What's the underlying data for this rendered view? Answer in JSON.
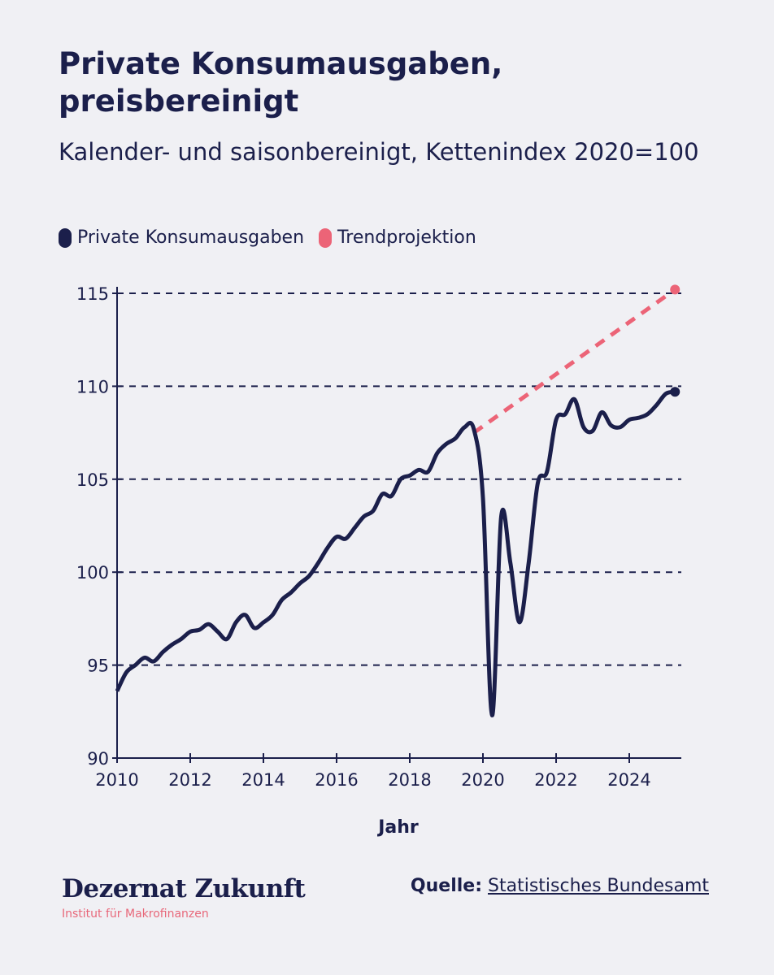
{
  "colors": {
    "series": "#1b1f4b",
    "trend": "#ec6477",
    "background": "#f0f0f4"
  },
  "footer": {
    "brand": "Dezernat Zukunft",
    "brand_sub": "Institut für Makrofinanzen",
    "source_label": "Quelle:",
    "source_link": "Statistisches Bundesamt"
  },
  "chart_data": {
    "type": "line",
    "title": "Private Konsumausgaben, preisbereinigt",
    "subtitle": "Kalender- und saisonbereinigt, Kettenindex 2020=100",
    "xlabel": "Jahr",
    "ylabel": "",
    "xlim": [
      2010,
      2025.4
    ],
    "ylim": [
      90,
      115
    ],
    "xticks": [
      "2010",
      "2012",
      "2014",
      "2016",
      "2018",
      "2020",
      "2022",
      "2024"
    ],
    "yticks": [
      "90",
      "95",
      "100",
      "105",
      "110",
      "115"
    ],
    "grid": "horizontal dashed",
    "legend": [
      "Private Konsumausgaben",
      "Trendprojektion"
    ],
    "legend_position": "top-left",
    "series": [
      {
        "name": "Private Konsumausgaben",
        "style": "solid",
        "x": [
          2010,
          2010.25,
          2010.5,
          2010.75,
          2011,
          2011.25,
          2011.5,
          2011.75,
          2012,
          2012.25,
          2012.5,
          2012.75,
          2013,
          2013.25,
          2013.5,
          2013.75,
          2014,
          2014.25,
          2014.5,
          2014.75,
          2015,
          2015.25,
          2015.5,
          2015.75,
          2016,
          2016.25,
          2016.5,
          2016.75,
          2017,
          2017.25,
          2017.5,
          2017.75,
          2018,
          2018.25,
          2018.5,
          2018.75,
          2019,
          2019.25,
          2019.5,
          2019.75,
          2020,
          2020.25,
          2020.5,
          2020.75,
          2021,
          2021.25,
          2021.5,
          2021.75,
          2022,
          2022.25,
          2022.5,
          2022.75,
          2023,
          2023.25,
          2023.5,
          2023.75,
          2024,
          2024.25,
          2024.5,
          2024.75,
          2025,
          2025.25
        ],
        "values": [
          93.6,
          94.6,
          95.0,
          95.4,
          95.2,
          95.7,
          96.1,
          96.4,
          96.8,
          96.9,
          97.2,
          96.8,
          96.4,
          97.3,
          97.7,
          97.0,
          97.3,
          97.7,
          98.5,
          98.9,
          99.4,
          99.8,
          100.5,
          101.3,
          101.9,
          101.8,
          102.4,
          103.0,
          103.3,
          104.2,
          104.1,
          105.0,
          105.2,
          105.5,
          105.4,
          106.4,
          106.9,
          107.2,
          107.8,
          107.7,
          104.0,
          92.3,
          103.0,
          100.5,
          97.3,
          100.5,
          104.8,
          105.4,
          108.2,
          108.5,
          109.3,
          107.8,
          107.6,
          108.6,
          107.9,
          107.8,
          108.2,
          108.3,
          108.5,
          109.0,
          109.6,
          109.7
        ]
      },
      {
        "name": "Trendprojektion",
        "style": "dashed",
        "x": [
          2019.75,
          2025.25
        ],
        "values": [
          107.5,
          115.2
        ]
      }
    ]
  }
}
